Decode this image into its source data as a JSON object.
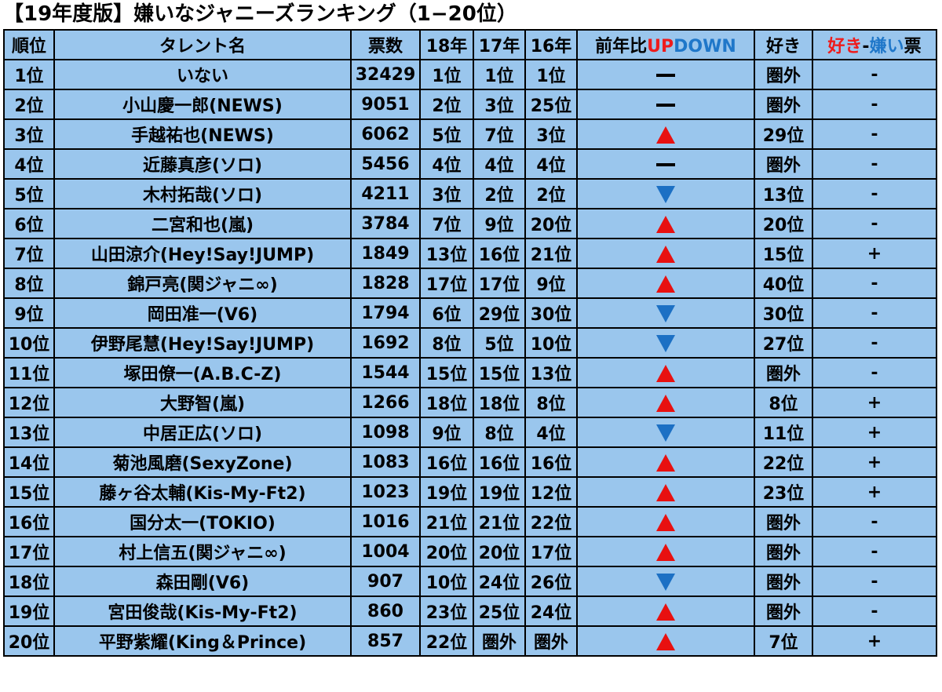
{
  "title": "【19年度版】嫌いなジャニーズランキング（1−20位）",
  "colors": {
    "background": "#9ac6ed",
    "up": "#e81010",
    "down": "#1c70c4",
    "red_text": "#ee1c1c",
    "blue_text": "#1f77c9"
  },
  "headers": {
    "rank": "順位",
    "name": "タレント名",
    "votes": "票数",
    "y18": "18年",
    "y17": "17年",
    "y16": "16年",
    "change_prefix": "前年比",
    "change_up": "UP",
    "change_down": "DOWN",
    "like": "好き",
    "diff_like": "好き",
    "diff_sep": "-",
    "diff_dislike": "嫌い",
    "diff_suffix": "票"
  },
  "rows": [
    {
      "rank": "1位",
      "name": "いない",
      "votes": "32429",
      "y18": "1位",
      "y17": "1位",
      "y16": "1位",
      "change": "same",
      "like": "圏外",
      "diff": "-"
    },
    {
      "rank": "2位",
      "name": "小山慶一郎(NEWS)",
      "votes": "9051",
      "y18": "2位",
      "y17": "3位",
      "y16": "25位",
      "change": "same",
      "like": "圏外",
      "diff": "-"
    },
    {
      "rank": "3位",
      "name": "手越祐也(NEWS)",
      "votes": "6062",
      "y18": "5位",
      "y17": "7位",
      "y16": "3位",
      "change": "up",
      "like": "29位",
      "diff": "-"
    },
    {
      "rank": "4位",
      "name": "近藤真彦(ソロ)",
      "votes": "5456",
      "y18": "4位",
      "y17": "4位",
      "y16": "4位",
      "change": "same",
      "like": "圏外",
      "diff": "-"
    },
    {
      "rank": "5位",
      "name": "木村拓哉(ソロ)",
      "votes": "4211",
      "y18": "3位",
      "y17": "2位",
      "y16": "2位",
      "change": "down",
      "like": "13位",
      "diff": "-"
    },
    {
      "rank": "6位",
      "name": "二宮和也(嵐)",
      "votes": "3784",
      "y18": "7位",
      "y17": "9位",
      "y16": "20位",
      "change": "up",
      "like": "20位",
      "diff": "-"
    },
    {
      "rank": "7位",
      "name": "山田涼介(Hey!Say!JUMP)",
      "votes": "1849",
      "y18": "13位",
      "y17": "16位",
      "y16": "21位",
      "change": "up",
      "like": "15位",
      "diff": "+"
    },
    {
      "rank": "8位",
      "name": "錦戸亮(関ジャニ∞)",
      "votes": "1828",
      "y18": "17位",
      "y17": "17位",
      "y16": "9位",
      "change": "up",
      "like": "40位",
      "diff": "-"
    },
    {
      "rank": "9位",
      "name": "岡田准一(V6)",
      "votes": "1794",
      "y18": "6位",
      "y17": "29位",
      "y16": "30位",
      "change": "down",
      "like": "30位",
      "diff": "-"
    },
    {
      "rank": "10位",
      "name": "伊野尾慧(Hey!Say!JUMP)",
      "votes": "1692",
      "y18": "8位",
      "y17": "5位",
      "y16": "10位",
      "change": "down",
      "like": "27位",
      "diff": "-"
    },
    {
      "rank": "11位",
      "name": "塚田僚一(A.B.C-Z)",
      "votes": "1544",
      "y18": "15位",
      "y17": "15位",
      "y16": "13位",
      "change": "up",
      "like": "圏外",
      "diff": "-"
    },
    {
      "rank": "12位",
      "name": "大野智(嵐)",
      "votes": "1266",
      "y18": "18位",
      "y17": "18位",
      "y16": "8位",
      "change": "up",
      "like": "8位",
      "diff": "+"
    },
    {
      "rank": "13位",
      "name": "中居正広(ソロ)",
      "votes": "1098",
      "y18": "9位",
      "y17": "8位",
      "y16": "4位",
      "change": "down",
      "like": "11位",
      "diff": "+"
    },
    {
      "rank": "14位",
      "name": "菊池風磨(SexyZone)",
      "votes": "1083",
      "y18": "16位",
      "y17": "16位",
      "y16": "16位",
      "change": "up",
      "like": "22位",
      "diff": "+"
    },
    {
      "rank": "15位",
      "name": "藤ヶ谷太輔(Kis-My-Ft2)",
      "votes": "1023",
      "y18": "19位",
      "y17": "19位",
      "y16": "12位",
      "change": "up",
      "like": "23位",
      "diff": "+"
    },
    {
      "rank": "16位",
      "name": "国分太一(TOKIO)",
      "votes": "1016",
      "y18": "21位",
      "y17": "21位",
      "y16": "22位",
      "change": "up",
      "like": "圏外",
      "diff": "-"
    },
    {
      "rank": "17位",
      "name": "村上信五(関ジャニ∞)",
      "votes": "1004",
      "y18": "20位",
      "y17": "20位",
      "y16": "17位",
      "change": "up",
      "like": "圏外",
      "diff": "-"
    },
    {
      "rank": "18位",
      "name": "森田剛(V6)",
      "votes": "907",
      "y18": "10位",
      "y17": "24位",
      "y16": "26位",
      "change": "down",
      "like": "圏外",
      "diff": "-"
    },
    {
      "rank": "19位",
      "name": "宮田俊哉(Kis-My-Ft2)",
      "votes": "860",
      "y18": "23位",
      "y17": "25位",
      "y16": "24位",
      "change": "up",
      "like": "圏外",
      "diff": "-"
    },
    {
      "rank": "20位",
      "name": "平野紫耀(King＆Prince)",
      "votes": "857",
      "y18": "22位",
      "y17": "圏外",
      "y16": "圏外",
      "change": "up",
      "like": "7位",
      "diff": "+"
    }
  ]
}
